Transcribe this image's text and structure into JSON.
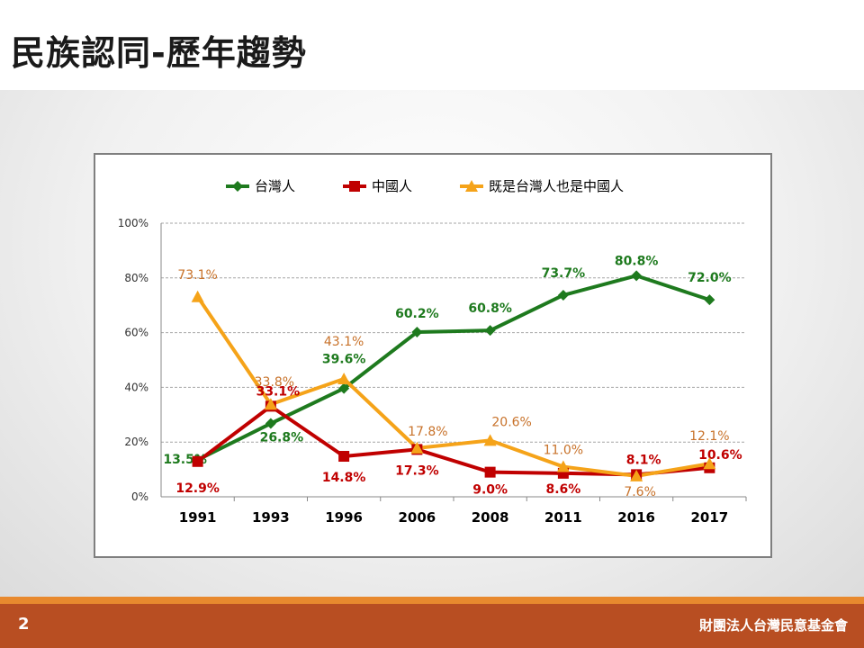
{
  "slide": {
    "title": "民族認同-歷年趨勢",
    "page_number": "2",
    "organization": "財團法人台灣民意基金會"
  },
  "colors": {
    "taiwanese": "#1e7a1e",
    "chinese": "#c00000",
    "both": "#f5a319",
    "both_label": "#c8722a",
    "footer": "#b84e22",
    "footer_stripe": "#e8892e"
  },
  "chart_data": {
    "type": "line",
    "categories": [
      "1991",
      "1993",
      "1996",
      "2006",
      "2008",
      "2011",
      "2016",
      "2017"
    ],
    "yaxis": {
      "min": 0,
      "max": 100,
      "ticks": [
        "0%",
        "20%",
        "40%",
        "60%",
        "80%",
        "100%"
      ],
      "tick_values": [
        0,
        20,
        40,
        60,
        80,
        100
      ]
    },
    "grid": true,
    "legend_position": "top",
    "series": [
      {
        "name": "台灣人",
        "marker": "diamond",
        "values": [
          13.5,
          26.8,
          39.6,
          60.2,
          60.8,
          73.7,
          80.8,
          72.0
        ],
        "labels": [
          "13.5%",
          "26.8%",
          "39.6%",
          "60.2%",
          "60.8%",
          "73.7%",
          "80.8%",
          "72.0%"
        ]
      },
      {
        "name": "中國人",
        "marker": "square",
        "values": [
          12.9,
          33.1,
          14.8,
          17.3,
          9.0,
          8.6,
          8.1,
          10.6
        ],
        "labels": [
          "12.9%",
          "33.1%",
          "14.8%",
          "17.3%",
          "9.0%",
          "8.6%",
          "8.1%",
          "10.6%"
        ]
      },
      {
        "name": "既是台灣人也是中國人",
        "marker": "triangle",
        "values": [
          73.1,
          33.8,
          43.1,
          17.8,
          20.6,
          11.0,
          7.6,
          12.1
        ],
        "labels": [
          "73.1%",
          "33.8%",
          "43.1%",
          "17.8%",
          "20.6%",
          "11.0%",
          "7.6%",
          "12.1%"
        ]
      }
    ]
  }
}
